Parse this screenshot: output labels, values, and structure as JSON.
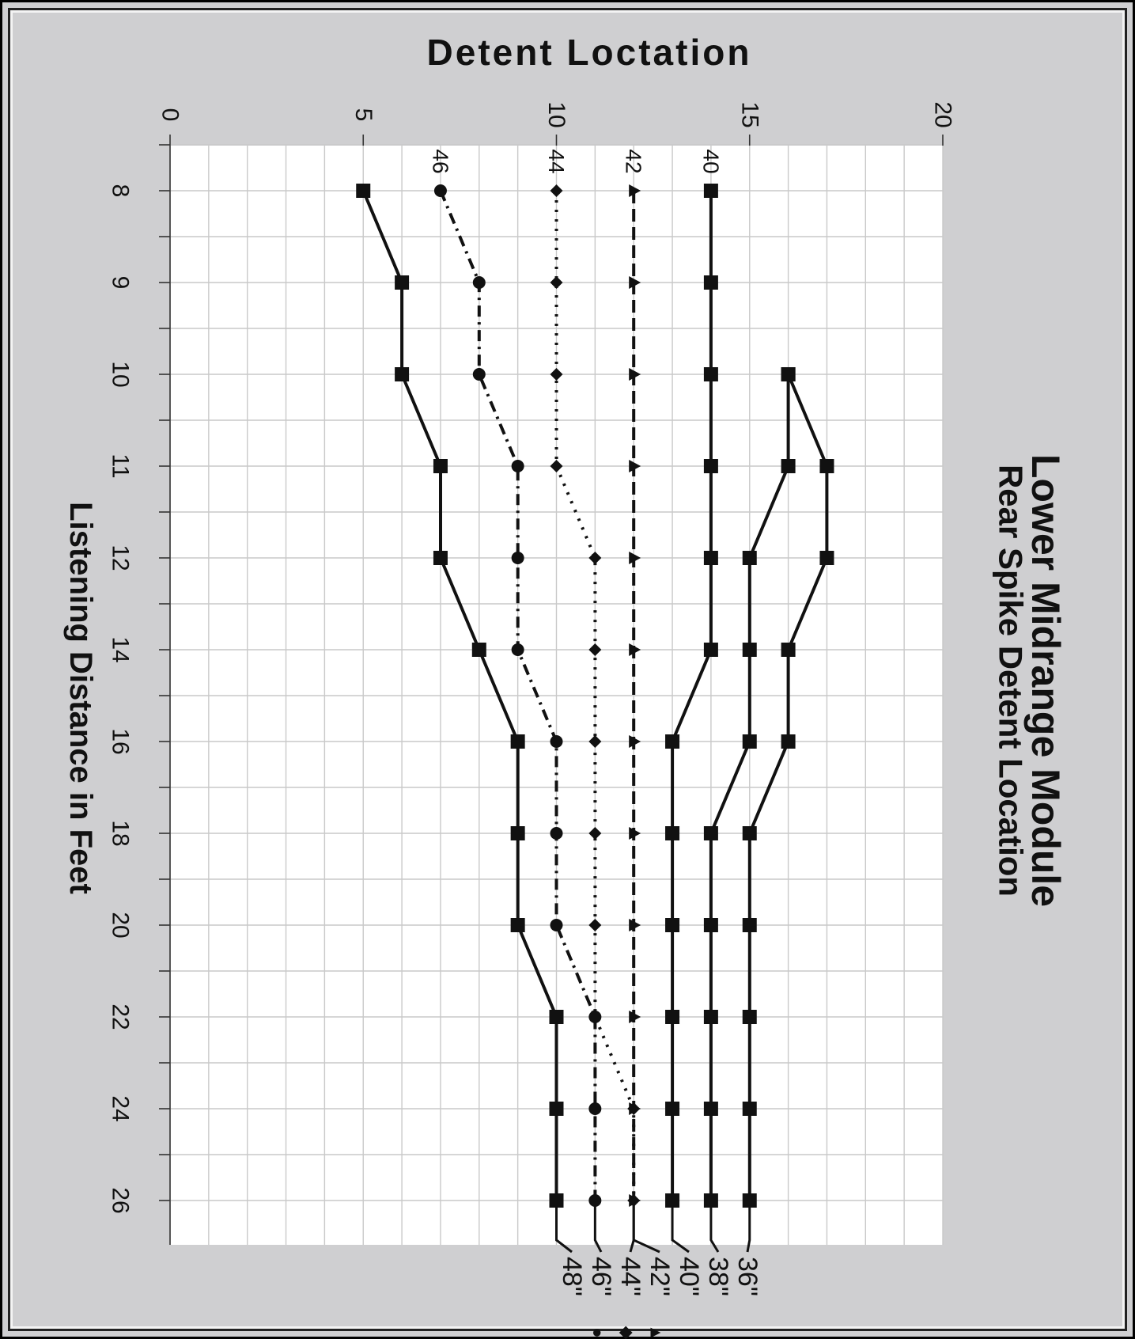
{
  "chart_data": {
    "type": "line",
    "orientation": "rotated 90 degrees clockwise",
    "title": "Lower Midrange Module",
    "subtitle": "Rear Spike Detent Location",
    "ylabel": "Detent Loctation",
    "xlabel": "Listening Distance in Feet",
    "ylim": [
      0,
      20
    ],
    "y_ticks": [
      "0",
      "5",
      "10",
      "15",
      "20"
    ],
    "categories": [
      "8",
      "9",
      "10",
      "11",
      "12",
      "14",
      "16",
      "18",
      "20",
      "22",
      "24",
      "26"
    ],
    "grid": true,
    "series": [
      {
        "name": "36\"",
        "end_label": "36\"",
        "marker": "square",
        "dash": "solid",
        "values": [
          null,
          null,
          16,
          17,
          17,
          16,
          16,
          15,
          15,
          15,
          15,
          15
        ]
      },
      {
        "name": "38\"",
        "end_label": "38\"",
        "marker": "square",
        "dash": "solid",
        "values": [
          null,
          null,
          16,
          16,
          15,
          15,
          15,
          14,
          14,
          14,
          14,
          14
        ]
      },
      {
        "name": "40\"",
        "end_label": "40\"",
        "start_label": "40",
        "marker": "square",
        "dash": "solid",
        "values": [
          14,
          14,
          14,
          14,
          14,
          14,
          13,
          13,
          13,
          13,
          13,
          13
        ]
      },
      {
        "name": "42\"",
        "end_label": "42\"",
        "start_label": "42",
        "marker": "triangle",
        "marker_glyph": "▲",
        "dash": "dashed",
        "values": [
          12,
          12,
          12,
          12,
          12,
          12,
          12,
          12,
          12,
          12,
          12,
          12
        ]
      },
      {
        "name": "44\"",
        "end_label": "44\"",
        "start_label": "44",
        "marker": "diamond",
        "marker_glyph": "◆",
        "dash": "dotted",
        "values": [
          10,
          10,
          10,
          10,
          11,
          11,
          11,
          11,
          11,
          11,
          12,
          12
        ]
      },
      {
        "name": "46\"",
        "end_label": "46\"",
        "start_label": "46",
        "marker": "circle",
        "marker_glyph": "●",
        "dash": "dash-dot",
        "values": [
          7,
          8,
          8,
          9,
          9,
          9,
          10,
          10,
          10,
          11,
          11,
          11
        ]
      },
      {
        "name": "48\"",
        "end_label": "48\"",
        "marker": "square",
        "dash": "solid",
        "values": [
          5,
          6,
          6,
          7,
          7,
          8,
          9,
          9,
          9,
          10,
          10,
          10
        ]
      }
    ]
  }
}
